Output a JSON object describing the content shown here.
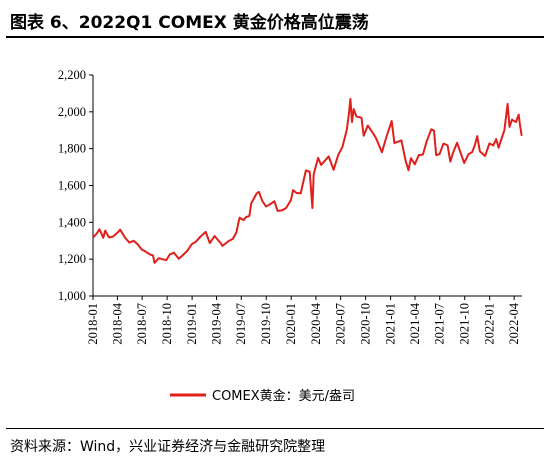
{
  "header": {
    "title": "图表 6、2022Q1 COMEX 黄金价格高位震荡"
  },
  "footer": {
    "source": "资料来源：Wind，兴业证券经济与金融研究院整理"
  },
  "colors": {
    "series": "#e0201b",
    "axis": "#000000"
  },
  "chart_data": {
    "type": "line",
    "title": "图表 6、2022Q1 COMEX 黄金价格高位震荡",
    "xlabel": "",
    "ylabel": "",
    "ylim": [
      1000,
      2200
    ],
    "xlim": [
      "2018-01-01",
      "2022-04-30"
    ],
    "grid": false,
    "legend": "bottom",
    "y_ticks": [
      1000,
      1200,
      1400,
      1600,
      1800,
      2000,
      2200
    ],
    "y_tick_labels": [
      "1,000",
      "1,200",
      "1,400",
      "1,600",
      "1,800",
      "2,000",
      "2,200"
    ],
    "x_ticks": [
      "2018-01",
      "2018-04",
      "2018-07",
      "2018-10",
      "2019-01",
      "2019-04",
      "2019-07",
      "2019-10",
      "2020-01",
      "2020-04",
      "2020-07",
      "2020-10",
      "2021-01",
      "2021-04",
      "2021-07",
      "2021-10",
      "2022-01",
      "2022-04"
    ],
    "series": [
      {
        "name": "COMEX黄金：美元/盎司",
        "points": [
          [
            "2018-01-02",
            1318
          ],
          [
            "2018-01-15",
            1340
          ],
          [
            "2018-01-25",
            1362
          ],
          [
            "2018-02-08",
            1316
          ],
          [
            "2018-02-15",
            1355
          ],
          [
            "2018-03-01",
            1318
          ],
          [
            "2018-03-15",
            1322
          ],
          [
            "2018-04-02",
            1345
          ],
          [
            "2018-04-11",
            1360
          ],
          [
            "2018-04-30",
            1315
          ],
          [
            "2018-05-15",
            1290
          ],
          [
            "2018-05-31",
            1300
          ],
          [
            "2018-06-15",
            1280
          ],
          [
            "2018-06-29",
            1253
          ],
          [
            "2018-07-15",
            1240
          ],
          [
            "2018-07-31",
            1225
          ],
          [
            "2018-08-10",
            1220
          ],
          [
            "2018-08-16",
            1180
          ],
          [
            "2018-08-31",
            1205
          ],
          [
            "2018-09-14",
            1200
          ],
          [
            "2018-09-28",
            1195
          ],
          [
            "2018-10-11",
            1226
          ],
          [
            "2018-10-26",
            1235
          ],
          [
            "2018-11-13",
            1202
          ],
          [
            "2018-11-30",
            1225
          ],
          [
            "2018-12-14",
            1245
          ],
          [
            "2018-12-31",
            1282
          ],
          [
            "2019-01-15",
            1295
          ],
          [
            "2019-01-31",
            1322
          ],
          [
            "2019-02-20",
            1348
          ],
          [
            "2019-03-07",
            1288
          ],
          [
            "2019-03-25",
            1325
          ],
          [
            "2019-04-15",
            1290
          ],
          [
            "2019-04-23",
            1272
          ],
          [
            "2019-05-15",
            1298
          ],
          [
            "2019-05-31",
            1310
          ],
          [
            "2019-06-13",
            1345
          ],
          [
            "2019-06-20",
            1395
          ],
          [
            "2019-06-25",
            1425
          ],
          [
            "2019-07-10",
            1412
          ],
          [
            "2019-07-18",
            1428
          ],
          [
            "2019-07-31",
            1435
          ],
          [
            "2019-08-07",
            1505
          ],
          [
            "2019-08-15",
            1525
          ],
          [
            "2019-08-26",
            1556
          ],
          [
            "2019-09-04",
            1565
          ],
          [
            "2019-09-17",
            1515
          ],
          [
            "2019-09-30",
            1486
          ],
          [
            "2019-10-15",
            1498
          ],
          [
            "2019-10-31",
            1515
          ],
          [
            "2019-11-12",
            1462
          ],
          [
            "2019-11-29",
            1465
          ],
          [
            "2019-12-13",
            1478
          ],
          [
            "2019-12-31",
            1520
          ],
          [
            "2020-01-08",
            1575
          ],
          [
            "2020-01-20",
            1560
          ],
          [
            "2020-02-05",
            1557
          ],
          [
            "2020-02-24",
            1682
          ],
          [
            "2020-03-09",
            1675
          ],
          [
            "2020-03-19",
            1478
          ],
          [
            "2020-03-24",
            1660
          ],
          [
            "2020-04-09",
            1750
          ],
          [
            "2020-04-20",
            1712
          ],
          [
            "2020-05-18",
            1758
          ],
          [
            "2020-06-05",
            1685
          ],
          [
            "2020-06-22",
            1765
          ],
          [
            "2020-07-08",
            1810
          ],
          [
            "2020-07-24",
            1905
          ],
          [
            "2020-07-31",
            1985
          ],
          [
            "2020-08-06",
            2070
          ],
          [
            "2020-08-12",
            1945
          ],
          [
            "2020-08-18",
            2015
          ],
          [
            "2020-08-28",
            1975
          ],
          [
            "2020-09-16",
            1968
          ],
          [
            "2020-09-24",
            1870
          ],
          [
            "2020-10-09",
            1925
          ],
          [
            "2020-10-30",
            1880
          ],
          [
            "2020-11-09",
            1855
          ],
          [
            "2020-11-30",
            1780
          ],
          [
            "2020-12-16",
            1860
          ],
          [
            "2021-01-05",
            1950
          ],
          [
            "2021-01-15",
            1830
          ],
          [
            "2021-02-10",
            1845
          ],
          [
            "2021-02-26",
            1730
          ],
          [
            "2021-03-08",
            1683
          ],
          [
            "2021-03-17",
            1748
          ],
          [
            "2021-03-31",
            1715
          ],
          [
            "2021-04-15",
            1765
          ],
          [
            "2021-04-30",
            1768
          ],
          [
            "2021-05-14",
            1840
          ],
          [
            "2021-05-31",
            1905
          ],
          [
            "2021-06-10",
            1898
          ],
          [
            "2021-06-18",
            1765
          ],
          [
            "2021-06-30",
            1770
          ],
          [
            "2021-07-15",
            1828
          ],
          [
            "2021-07-30",
            1818
          ],
          [
            "2021-08-09",
            1730
          ],
          [
            "2021-08-20",
            1782
          ],
          [
            "2021-09-03",
            1832
          ],
          [
            "2021-09-29",
            1722
          ],
          [
            "2021-10-15",
            1770
          ],
          [
            "2021-10-29",
            1782
          ],
          [
            "2021-11-08",
            1822
          ],
          [
            "2021-11-16",
            1868
          ],
          [
            "2021-11-26",
            1785
          ],
          [
            "2021-12-15",
            1760
          ],
          [
            "2021-12-31",
            1828
          ],
          [
            "2022-01-14",
            1818
          ],
          [
            "2022-01-25",
            1852
          ],
          [
            "2022-02-03",
            1805
          ],
          [
            "2022-02-15",
            1860
          ],
          [
            "2022-02-24",
            1900
          ],
          [
            "2022-03-08",
            2043
          ],
          [
            "2022-03-15",
            1918
          ],
          [
            "2022-03-24",
            1958
          ],
          [
            "2022-03-31",
            1950
          ],
          [
            "2022-04-08",
            1945
          ],
          [
            "2022-04-18",
            1985
          ],
          [
            "2022-04-22",
            1935
          ],
          [
            "2022-04-29",
            1870
          ]
        ]
      }
    ]
  }
}
